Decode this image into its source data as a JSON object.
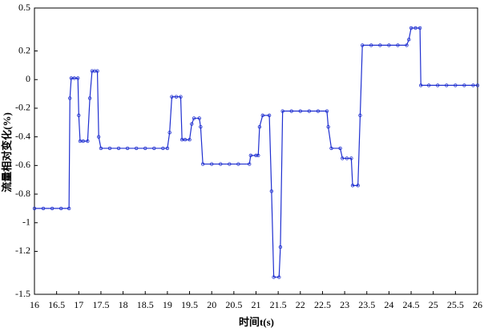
{
  "chart_data": {
    "type": "line",
    "x_label": "时间t(s)",
    "y_label": "流量相对变化(%)",
    "color": "#1f2fd0",
    "xlim": [
      16,
      26
    ],
    "xticks": [
      16,
      16.5,
      17,
      17.5,
      18,
      18.5,
      19,
      19.5,
      20,
      20.5,
      21,
      21.5,
      22,
      22.5,
      23,
      23.5,
      24,
      24.5,
      25,
      25.5,
      26
    ],
    "ylim": [
      -1.5,
      0.5
    ],
    "yticks": [
      0.5,
      0.2,
      0,
      -0.2,
      -0.4,
      -0.6,
      -0.8,
      -1,
      -1.2,
      -1.5
    ],
    "x": [
      16,
      16.2,
      16.4,
      16.6,
      16.78,
      16.8,
      16.83,
      16.9,
      16.98,
      17.0,
      17.03,
      17.1,
      17.2,
      17.25,
      17.3,
      17.36,
      17.42,
      17.45,
      17.5,
      17.7,
      17.9,
      18.1,
      18.3,
      18.5,
      18.7,
      18.9,
      19.0,
      19.05,
      19.1,
      19.2,
      19.3,
      19.33,
      19.4,
      19.5,
      19.55,
      19.6,
      19.72,
      19.75,
      19.8,
      20.0,
      20.2,
      20.4,
      20.6,
      20.85,
      20.88,
      21.0,
      21.05,
      21.08,
      21.15,
      21.3,
      21.35,
      21.4,
      21.52,
      21.55,
      21.6,
      21.8,
      22.0,
      22.2,
      22.4,
      22.6,
      22.63,
      22.7,
      22.9,
      22.95,
      23.05,
      23.15,
      23.18,
      23.3,
      23.35,
      23.4,
      23.6,
      23.8,
      24.0,
      24.2,
      24.4,
      24.45,
      24.5,
      24.6,
      24.7,
      24.72,
      24.9,
      25.1,
      25.3,
      25.5,
      25.7,
      25.9,
      26
    ],
    "values": [
      -0.9,
      -0.9,
      -0.9,
      -0.9,
      -0.9,
      -0.13,
      0.01,
      0.01,
      0.01,
      -0.25,
      -0.43,
      -0.43,
      -0.43,
      -0.13,
      0.06,
      0.06,
      0.06,
      -0.4,
      -0.48,
      -0.48,
      -0.48,
      -0.48,
      -0.48,
      -0.48,
      -0.48,
      -0.48,
      -0.48,
      -0.37,
      -0.12,
      -0.12,
      -0.12,
      -0.42,
      -0.42,
      -0.42,
      -0.31,
      -0.27,
      -0.27,
      -0.33,
      -0.59,
      -0.59,
      -0.59,
      -0.59,
      -0.59,
      -0.59,
      -0.53,
      -0.53,
      -0.53,
      -0.33,
      -0.25,
      -0.25,
      -0.78,
      -1.38,
      -1.38,
      -1.17,
      -0.22,
      -0.22,
      -0.22,
      -0.22,
      -0.22,
      -0.22,
      -0.33,
      -0.48,
      -0.48,
      -0.55,
      -0.55,
      -0.55,
      -0.74,
      -0.74,
      -0.25,
      0.24,
      0.24,
      0.24,
      0.24,
      0.24,
      0.24,
      0.28,
      0.36,
      0.36,
      0.36,
      -0.04,
      -0.04,
      -0.04,
      -0.04,
      -0.04,
      -0.04,
      -0.04,
      -0.04
    ]
  }
}
